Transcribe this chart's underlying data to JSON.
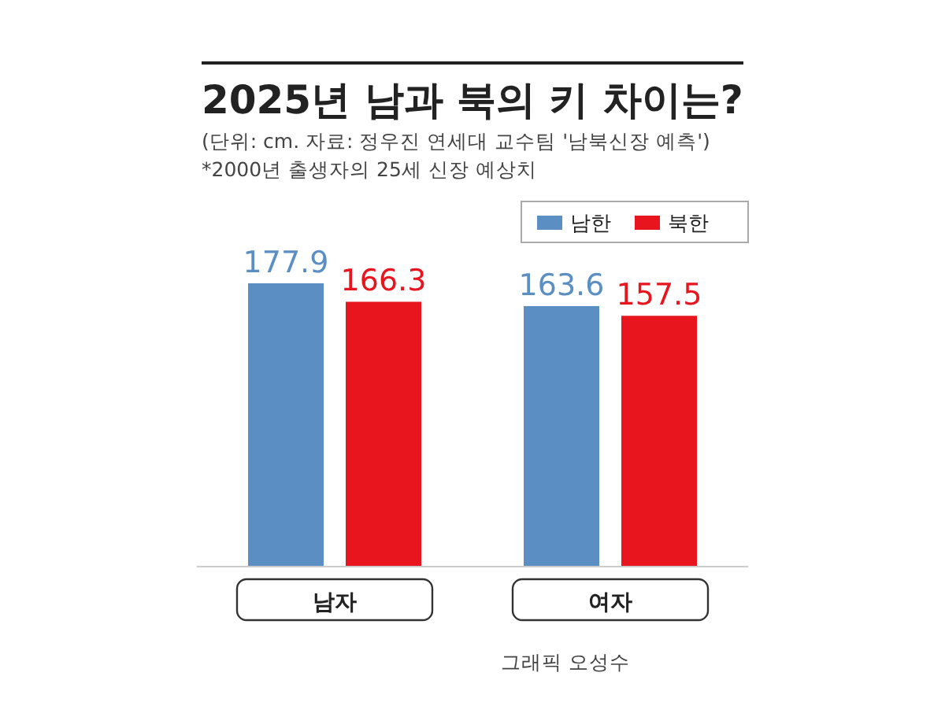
{
  "chart_data": {
    "type": "bar",
    "title": "2025년 남과 북의 키 차이는?",
    "subtitle": "(단위: cm. 자료: 정우진 연세대 교수팀 '남북신장 예측')",
    "annotations": [
      "*2000년 출생자의 25세 신장 예상치",
      "그래픽 오성수"
    ],
    "categories": [
      "남자",
      "여자"
    ],
    "series": [
      {
        "name": "남한",
        "color": "#5b8fc3",
        "values": [
          177.9,
          163.6
        ]
      },
      {
        "name": "북한",
        "color": "#e8141e",
        "values": [
          166.3,
          157.5
        ]
      }
    ],
    "data_labels": true,
    "legend": "top right"
  }
}
